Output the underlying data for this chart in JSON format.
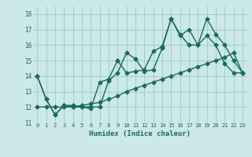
{
  "title": "",
  "xlabel": "Humidex (Indice chaleur)",
  "bg_color": "#cce8e8",
  "grid_color": "#99cccc",
  "line_color": "#1a6b5a",
  "xlim": [
    -0.5,
    23.5
  ],
  "ylim": [
    11,
    18.5
  ],
  "yticks": [
    11,
    12,
    13,
    14,
    15,
    16,
    17,
    18
  ],
  "xticks": [
    0,
    1,
    2,
    3,
    4,
    5,
    6,
    7,
    8,
    9,
    10,
    11,
    12,
    13,
    14,
    15,
    16,
    17,
    18,
    19,
    20,
    21,
    22,
    23
  ],
  "series": [
    {
      "x": [
        0,
        1,
        2,
        3,
        4,
        5,
        6,
        7,
        8,
        9,
        10,
        11,
        12,
        13,
        14,
        15,
        16,
        17,
        18,
        19,
        20,
        21,
        22,
        23
      ],
      "y": [
        14.0,
        12.5,
        11.5,
        12.1,
        12.1,
        12.0,
        11.9,
        13.6,
        13.8,
        15.0,
        14.2,
        14.3,
        14.4,
        15.6,
        15.9,
        17.7,
        16.6,
        17.0,
        16.0,
        16.6,
        16.0,
        14.8,
        14.2,
        14.2
      ]
    },
    {
      "x": [
        0,
        1,
        2,
        3,
        4,
        5,
        6,
        7,
        8,
        9,
        10,
        11,
        12,
        13,
        14,
        15,
        16,
        17,
        18,
        19,
        20,
        21,
        22,
        23
      ],
      "y": [
        14.0,
        12.5,
        11.5,
        12.1,
        12.0,
        12.0,
        12.0,
        12.0,
        13.7,
        14.2,
        15.5,
        15.1,
        14.3,
        14.4,
        15.8,
        17.7,
        16.7,
        16.0,
        16.0,
        17.7,
        16.7,
        16.0,
        15.0,
        14.2
      ]
    },
    {
      "x": [
        0,
        1,
        2,
        3,
        4,
        5,
        6,
        7,
        8,
        9,
        10,
        11,
        12,
        13,
        14,
        15,
        16,
        17,
        18,
        19,
        20,
        21,
        22,
        23
      ],
      "y": [
        12.0,
        12.0,
        12.0,
        12.0,
        12.0,
        12.1,
        12.2,
        12.3,
        12.5,
        12.7,
        13.0,
        13.2,
        13.4,
        13.6,
        13.8,
        14.0,
        14.2,
        14.4,
        14.6,
        14.8,
        15.0,
        15.2,
        15.5,
        14.2
      ]
    }
  ],
  "marker": "D",
  "markersize": 2.5,
  "linewidth": 1.0
}
